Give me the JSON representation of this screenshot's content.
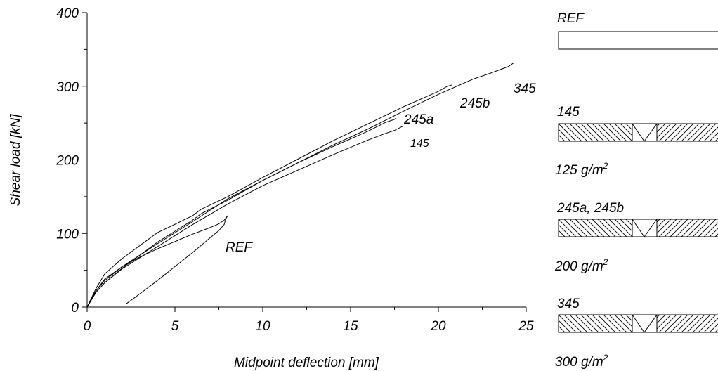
{
  "chart_data": {
    "type": "line",
    "xlabel": "Midpoint deflection [mm]",
    "ylabel": "Shear load [kN]",
    "xlim": [
      0,
      25
    ],
    "ylim": [
      0,
      400
    ],
    "x_ticks": [
      0,
      5,
      10,
      15,
      20,
      25
    ],
    "y_ticks": [
      0,
      100,
      200,
      300,
      400
    ],
    "grid": false,
    "series": [
      {
        "name": "REF",
        "x": [
          0,
          0.5,
          1,
          2,
          3,
          4,
          5,
          6,
          7,
          7.5,
          7.8,
          8.0,
          7.9,
          7.8,
          7.5,
          7,
          6,
          5,
          4,
          3,
          2.2
        ],
        "y": [
          0,
          22,
          38,
          55,
          68,
          79,
          89,
          99,
          108,
          113,
          118,
          124,
          120,
          112,
          104,
          94,
          74,
          55,
          36,
          18,
          4
        ]
      },
      {
        "name": "145",
        "x": [
          0,
          0.5,
          1,
          2,
          4,
          6,
          8,
          10,
          12,
          14,
          16,
          17,
          17.5,
          18.0
        ],
        "y": [
          0,
          20,
          33,
          52,
          82,
          112,
          140,
          165,
          186,
          207,
          227,
          236,
          240,
          246
        ]
      },
      {
        "name": "245a",
        "x": [
          0,
          0.5,
          1,
          2,
          4,
          6,
          8,
          10,
          12,
          14,
          16,
          17,
          17.5,
          17.6
        ],
        "y": [
          0,
          22,
          36,
          55,
          86,
          116,
          147,
          172,
          196,
          218,
          239,
          251,
          255,
          257
        ]
      },
      {
        "name": "245b",
        "x": [
          0,
          0.5,
          1,
          2,
          4,
          6,
          6.5,
          8,
          10,
          12,
          14,
          16,
          18,
          20,
          20.5,
          20.8
        ],
        "y": [
          0,
          25,
          45,
          66,
          101,
          124,
          133,
          150,
          176,
          201,
          226,
          249,
          272,
          293,
          300,
          302
        ]
      },
      {
        "name": "345",
        "x": [
          0,
          0.5,
          1,
          2,
          4,
          6,
          6.5,
          8,
          10,
          12,
          14,
          16,
          18,
          20,
          22,
          23,
          24,
          24.3
        ],
        "y": [
          0,
          20,
          33,
          53,
          88,
          118,
          127,
          145,
          172,
          196,
          220,
          242,
          266,
          289,
          310,
          318,
          327,
          332
        ]
      }
    ],
    "curve_labels": [
      "REF",
      "145",
      "245a",
      "245b",
      "345"
    ]
  },
  "legend_panel": {
    "items": [
      {
        "title": "REF",
        "sub": "",
        "sub_sup": "",
        "pattern": "none"
      },
      {
        "title": "145",
        "sub": "125 g/m",
        "sub_sup": "2",
        "pattern": "hatched"
      },
      {
        "title": "245a, 245b",
        "sub": "200 g/m",
        "sub_sup": "2",
        "pattern": "hatched"
      },
      {
        "title": "345",
        "sub": "300 g/m",
        "sub_sup": "2",
        "pattern": "hatched"
      }
    ]
  }
}
